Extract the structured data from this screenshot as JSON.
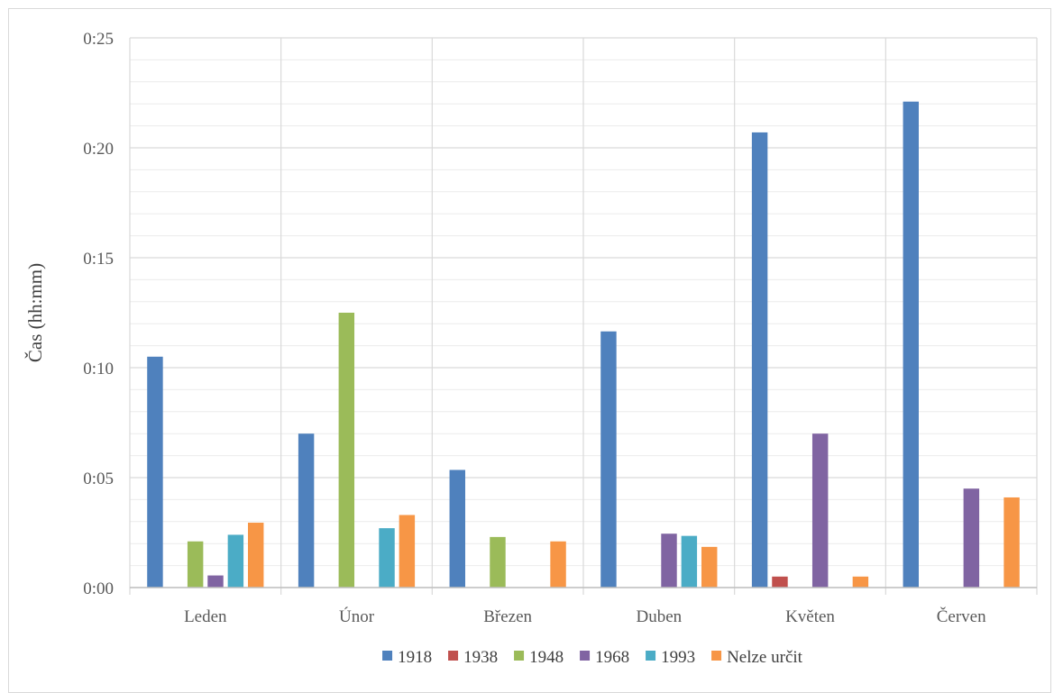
{
  "chart_data": {
    "type": "bar",
    "title": "",
    "xlabel": "",
    "ylabel": "Čas (hh:mm)",
    "y_unit": "minutes",
    "ylim": [
      0,
      25
    ],
    "y_ticks": [
      "0:00",
      "0:05",
      "0:10",
      "0:15",
      "0:20",
      "0:25"
    ],
    "grid": true,
    "legend_position": "bottom",
    "categories": [
      "Leden",
      "Únor",
      "Březen",
      "Duben",
      "Květen",
      "Červen"
    ],
    "series": [
      {
        "name": "1918",
        "color": "#4f81bd",
        "values": [
          10.5,
          7.0,
          5.35,
          11.65,
          20.7,
          22.1
        ]
      },
      {
        "name": "1938",
        "color": "#c0504d",
        "values": [
          0,
          0,
          0,
          0,
          0.5,
          0
        ]
      },
      {
        "name": "1948",
        "color": "#9bbb59",
        "values": [
          2.1,
          12.5,
          2.3,
          0,
          0,
          0
        ]
      },
      {
        "name": "1968",
        "color": "#8064a2",
        "values": [
          0.55,
          0,
          0,
          2.45,
          7.0,
          4.5
        ]
      },
      {
        "name": "1993",
        "color": "#4bacc6",
        "values": [
          2.4,
          2.7,
          0,
          2.35,
          0,
          0
        ]
      },
      {
        "name": "Nelze určit",
        "color": "#f79646",
        "values": [
          2.95,
          3.3,
          2.1,
          1.85,
          0.5,
          4.1
        ]
      }
    ]
  }
}
